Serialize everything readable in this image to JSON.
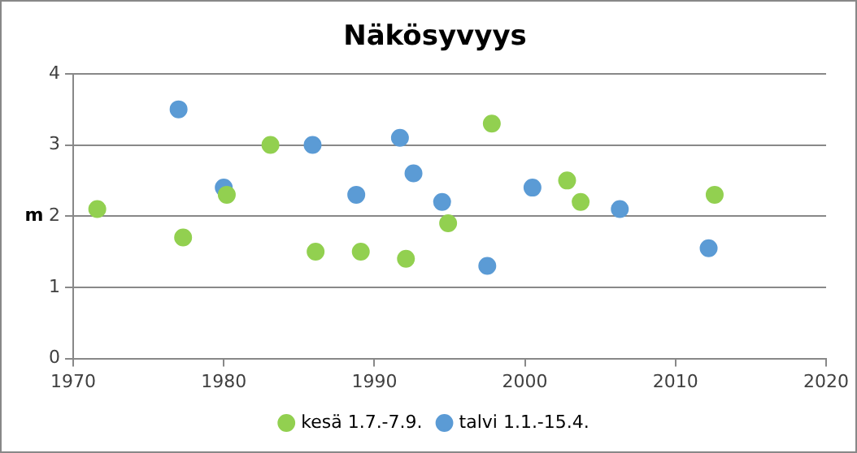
{
  "chart_data": {
    "type": "scatter",
    "title": "Näkösyvyys",
    "ylabel": "m",
    "series": [
      {
        "name": "kesä 1.7.-7.9.",
        "color": "#92d050",
        "x": [
          1971.6,
          1977.3,
          1980.2,
          1983.1,
          1986.1,
          1989.1,
          1992.1,
          1994.9,
          1997.8,
          2002.8,
          2003.7,
          2012.6
        ],
        "values": [
          2.1,
          1.7,
          2.3,
          3.0,
          1.5,
          1.5,
          1.4,
          1.9,
          3.3,
          2.5,
          2.2,
          2.3
        ]
      },
      {
        "name": "talvi 1.1.-15.4.",
        "color": "#5b9bd5",
        "x": [
          1977.0,
          1980.0,
          1985.9,
          1988.8,
          1991.7,
          1992.6,
          1994.5,
          1997.5,
          2000.5,
          2006.3,
          2012.2
        ],
        "values": [
          3.5,
          2.4,
          3.0,
          2.3,
          3.1,
          2.6,
          2.2,
          1.3,
          2.4,
          2.1,
          1.55
        ]
      }
    ],
    "xlim": [
      1970,
      2020
    ],
    "xticks": [
      1970,
      1980,
      1990,
      2000,
      2010,
      2020
    ],
    "ylim": [
      0,
      4
    ],
    "yticks": [
      0,
      1,
      2,
      3,
      4
    ],
    "grid": "y",
    "legend": "bottom",
    "marker": "circle"
  }
}
